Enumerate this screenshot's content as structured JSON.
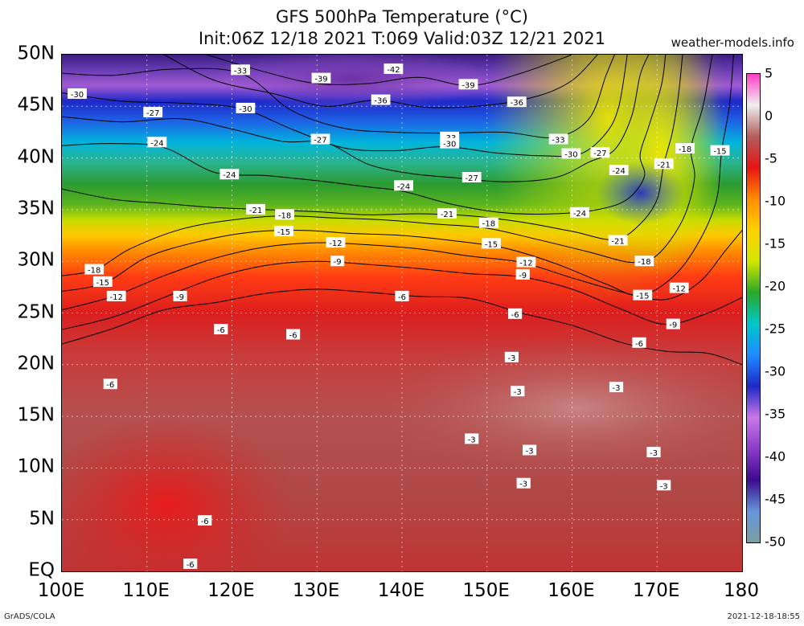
{
  "title": {
    "line1": "GFS 500hPa Temperature (°C)",
    "line2": "Init:06Z 12/18 2021 T:069 Valid:03Z 12/21 2021",
    "site": "weather-models.info"
  },
  "footer": {
    "left": "GrADS/COLA",
    "right": "2021-12-18-18:55"
  },
  "axes": {
    "lat_labels": [
      "50N",
      "45N",
      "40N",
      "35N",
      "30N",
      "25N",
      "20N",
      "15N",
      "10N",
      "5N",
      "EQ"
    ],
    "lat_values": [
      50,
      45,
      40,
      35,
      30,
      25,
      20,
      15,
      10,
      5,
      0
    ],
    "lon_labels": [
      "100E",
      "110E",
      "120E",
      "130E",
      "140E",
      "150E",
      "160E",
      "170E",
      "180"
    ],
    "lon_values": [
      100,
      110,
      120,
      130,
      140,
      150,
      160,
      170,
      180
    ],
    "lat_range": [
      0,
      50
    ],
    "lon_range": [
      100,
      180
    ],
    "grid": "dotted"
  },
  "colorbar": {
    "labels": [
      "5",
      "0",
      "-5",
      "-10",
      "-15",
      "-20",
      "-25",
      "-30",
      "-35",
      "-40",
      "-45",
      "-50"
    ],
    "values": [
      5,
      0,
      -5,
      -10,
      -15,
      -20,
      -25,
      -30,
      -35,
      -40,
      -45,
      -50
    ],
    "colors": [
      "#ff3cc8",
      "#f0f0f0",
      "#b25e5e",
      "#e61414",
      "#ff8c00",
      "#ffd200",
      "#d2e600",
      "#2aa82a",
      "#00c8c8",
      "#1e8cff",
      "#1e28c8",
      "#c878e6",
      "#8c3cc8",
      "#3c0a8c",
      "#6496dc",
      "#7a9fa0"
    ]
  },
  "contour_labels": [
    {
      "v": "-42",
      "lon": 139,
      "lat": 48.6
    },
    {
      "v": "-33",
      "lon": 121,
      "lat": 48.5
    },
    {
      "v": "-39",
      "lon": 130.5,
      "lat": 47.7
    },
    {
      "v": "-39",
      "lon": 147.8,
      "lat": 47.1
    },
    {
      "v": "-30",
      "lon": 101.8,
      "lat": 46.2
    },
    {
      "v": "-36",
      "lon": 137.5,
      "lat": 45.6
    },
    {
      "v": "-36",
      "lon": 153.5,
      "lat": 45.4
    },
    {
      "v": "-27",
      "lon": 110.7,
      "lat": 44.4
    },
    {
      "v": "-30",
      "lon": 121.6,
      "lat": 44.8
    },
    {
      "v": "-24",
      "lon": 111.2,
      "lat": 41.5
    },
    {
      "v": "-27",
      "lon": 130.4,
      "lat": 41.8
    },
    {
      "v": "-33",
      "lon": 145.6,
      "lat": 42.0
    },
    {
      "v": "-30",
      "lon": 145.6,
      "lat": 41.4
    },
    {
      "v": "-33",
      "lon": 158.4,
      "lat": 41.8
    },
    {
      "v": "-30",
      "lon": 159.9,
      "lat": 40.4
    },
    {
      "v": "-27",
      "lon": 163.3,
      "lat": 40.5
    },
    {
      "v": "-18",
      "lon": 173.3,
      "lat": 40.9
    },
    {
      "v": "-15",
      "lon": 177.4,
      "lat": 40.7
    },
    {
      "v": "-21",
      "lon": 170.8,
      "lat": 39.4
    },
    {
      "v": "-24",
      "lon": 165.5,
      "lat": 38.8
    },
    {
      "v": "-24",
      "lon": 119.7,
      "lat": 38.4
    },
    {
      "v": "-27",
      "lon": 148.2,
      "lat": 38.1
    },
    {
      "v": "-24",
      "lon": 140.2,
      "lat": 37.3
    },
    {
      "v": "-21",
      "lon": 122.8,
      "lat": 35.0
    },
    {
      "v": "-18",
      "lon": 126.2,
      "lat": 34.5
    },
    {
      "v": "-21",
      "lon": 145.3,
      "lat": 34.6
    },
    {
      "v": "-24",
      "lon": 160.9,
      "lat": 34.7
    },
    {
      "v": "-18",
      "lon": 150.2,
      "lat": 33.7
    },
    {
      "v": "-15",
      "lon": 126.1,
      "lat": 32.9
    },
    {
      "v": "-12",
      "lon": 132.2,
      "lat": 31.8
    },
    {
      "v": "-15",
      "lon": 150.5,
      "lat": 31.7
    },
    {
      "v": "-21",
      "lon": 165.4,
      "lat": 32.0
    },
    {
      "v": "-9",
      "lon": 132.4,
      "lat": 30.0
    },
    {
      "v": "-12",
      "lon": 154.6,
      "lat": 29.9
    },
    {
      "v": "-18",
      "lon": 168.5,
      "lat": 30.0
    },
    {
      "v": "-9",
      "lon": 154.2,
      "lat": 28.7
    },
    {
      "v": "-18",
      "lon": 103.8,
      "lat": 29.2
    },
    {
      "v": "-15",
      "lon": 104.8,
      "lat": 28.0
    },
    {
      "v": "-12",
      "lon": 172.6,
      "lat": 27.4
    },
    {
      "v": "-12",
      "lon": 106.4,
      "lat": 26.6
    },
    {
      "v": "-9",
      "lon": 113.9,
      "lat": 26.6
    },
    {
      "v": "-6",
      "lon": 140.0,
      "lat": 26.6
    },
    {
      "v": "-15",
      "lon": 168.3,
      "lat": 26.7
    },
    {
      "v": "-6",
      "lon": 153.3,
      "lat": 24.9
    },
    {
      "v": "-9",
      "lon": 171.9,
      "lat": 23.9
    },
    {
      "v": "-6",
      "lon": 118.7,
      "lat": 23.4
    },
    {
      "v": "-6",
      "lon": 127.2,
      "lat": 22.9
    },
    {
      "v": "-6",
      "lon": 167.9,
      "lat": 22.1
    },
    {
      "v": "-3",
      "lon": 152.9,
      "lat": 20.7
    },
    {
      "v": "-6",
      "lon": 105.7,
      "lat": 18.1
    },
    {
      "v": "-3",
      "lon": 165.2,
      "lat": 17.8
    },
    {
      "v": "-3",
      "lon": 153.6,
      "lat": 17.4
    },
    {
      "v": "-3",
      "lon": 148.2,
      "lat": 12.8
    },
    {
      "v": "-3",
      "lon": 155.0,
      "lat": 11.7
    },
    {
      "v": "-3",
      "lon": 169.6,
      "lat": 11.5
    },
    {
      "v": "-3",
      "lon": 154.3,
      "lat": 8.5
    },
    {
      "v": "-3",
      "lon": 170.8,
      "lat": 8.3
    },
    {
      "v": "-6",
      "lon": 116.8,
      "lat": 4.9
    },
    {
      "v": "-6",
      "lon": 115.1,
      "lat": 0.7
    }
  ],
  "contours": [
    {
      "v": -39,
      "pts": [
        [
          117,
          50
        ],
        [
          124,
          48.3
        ],
        [
          130,
          47.2
        ],
        [
          136,
          47.2
        ],
        [
          142,
          47.8
        ],
        [
          148,
          47.0
        ],
        [
          154,
          48.2
        ],
        [
          160,
          50
        ]
      ]
    },
    {
      "v": -36,
      "pts": [
        [
          112,
          50
        ],
        [
          118,
          47.5
        ],
        [
          125,
          46.2
        ],
        [
          131,
          45.0
        ],
        [
          137,
          45.6
        ],
        [
          143,
          44.9
        ],
        [
          150,
          45.1
        ],
        [
          156,
          46.0
        ],
        [
          160,
          47.5
        ],
        [
          163,
          50
        ]
      ]
    },
    {
      "v": -33,
      "pts": [
        [
          100,
          48.2
        ],
        [
          106,
          48.0
        ],
        [
          113,
          48.6
        ],
        [
          121,
          48.2
        ],
        [
          127,
          44.6
        ],
        [
          133,
          42.9
        ],
        [
          139,
          42.5
        ],
        [
          145,
          42.4
        ],
        [
          152,
          42.5
        ],
        [
          158,
          42.0
        ],
        [
          162,
          43.8
        ],
        [
          164,
          48
        ],
        [
          165,
          50
        ]
      ]
    },
    {
      "v": -30,
      "pts": [
        [
          100,
          46.3
        ],
        [
          107,
          45.5
        ],
        [
          114,
          45.3
        ],
        [
          121,
          44.8
        ],
        [
          127,
          42.8
        ],
        [
          133,
          41.0
        ],
        [
          139,
          40.7
        ],
        [
          145,
          41.1
        ],
        [
          151,
          40.5
        ],
        [
          157,
          40.2
        ],
        [
          161,
          40.4
        ],
        [
          164,
          42.4
        ],
        [
          165.5,
          45
        ],
        [
          166.5,
          50
        ]
      ]
    },
    {
      "v": -27,
      "pts": [
        [
          100,
          44.0
        ],
        [
          107,
          43.5
        ],
        [
          114,
          43.8
        ],
        [
          120,
          42.8
        ],
        [
          126,
          41.6
        ],
        [
          131,
          41.5
        ],
        [
          136,
          39.4
        ],
        [
          141,
          38.5
        ],
        [
          146,
          38.1
        ],
        [
          152,
          37.7
        ],
        [
          158,
          38.1
        ],
        [
          162,
          39.6
        ],
        [
          165,
          40.8
        ],
        [
          167,
          44
        ],
        [
          168,
          48
        ],
        [
          169,
          50
        ]
      ]
    },
    {
      "v": -24,
      "pts": [
        [
          100,
          41.2
        ],
        [
          106,
          41.4
        ],
        [
          112,
          41.0
        ],
        [
          118,
          38.6
        ],
        [
          124,
          38.3
        ],
        [
          130,
          37.8
        ],
        [
          136,
          37.2
        ],
        [
          140,
          36.8
        ],
        [
          146,
          35.5
        ],
        [
          152,
          34.7
        ],
        [
          158,
          34.6
        ],
        [
          163,
          35.0
        ],
        [
          166.5,
          36.0
        ],
        [
          168.5,
          38.2
        ],
        [
          168.0,
          40.3
        ],
        [
          169,
          43
        ],
        [
          170.5,
          47
        ],
        [
          171,
          50
        ]
      ]
    },
    {
      "v": -21,
      "pts": [
        [
          100,
          37.0
        ],
        [
          106,
          36.0
        ],
        [
          112,
          35.6
        ],
        [
          118,
          35.2
        ],
        [
          124,
          35.0
        ],
        [
          130,
          34.8
        ],
        [
          136,
          34.5
        ],
        [
          142,
          34.6
        ],
        [
          148,
          34.4
        ],
        [
          154,
          33.8
        ],
        [
          160,
          32.9
        ],
        [
          165,
          32.1
        ],
        [
          168,
          33.6
        ],
        [
          170,
          36
        ],
        [
          170.8,
          39.4
        ],
        [
          171.8,
          42.5
        ],
        [
          172.5,
          46
        ],
        [
          173,
          50
        ]
      ]
    },
    {
      "v": -18,
      "pts": [
        [
          100,
          28.6
        ],
        [
          104,
          29.2
        ],
        [
          108,
          31.2
        ],
        [
          114,
          33.1
        ],
        [
          120,
          34.0
        ],
        [
          126,
          34.4
        ],
        [
          132,
          34.2
        ],
        [
          138,
          34.0
        ],
        [
          144,
          33.6
        ],
        [
          150,
          33.2
        ],
        [
          156,
          32.1
        ],
        [
          162,
          30.9
        ],
        [
          167,
          29.9
        ],
        [
          170,
          30.6
        ],
        [
          173,
          34
        ],
        [
          174.4,
          38
        ],
        [
          174,
          41
        ],
        [
          175.4,
          45
        ],
        [
          176.5,
          50
        ]
      ]
    },
    {
      "v": -15,
      "pts": [
        [
          100,
          27.1
        ],
        [
          105,
          27.9
        ],
        [
          110,
          30.4
        ],
        [
          116,
          31.9
        ],
        [
          122,
          32.8
        ],
        [
          128,
          33.0
        ],
        [
          134,
          32.7
        ],
        [
          140,
          32.5
        ],
        [
          146,
          32.0
        ],
        [
          152,
          31.3
        ],
        [
          158,
          29.8
        ],
        [
          164,
          27.8
        ],
        [
          168,
          26.7
        ],
        [
          172,
          28.6
        ],
        [
          175,
          32
        ],
        [
          177,
          36
        ],
        [
          177.6,
          40.7
        ],
        [
          178.5,
          45
        ],
        [
          179,
          50
        ]
      ]
    },
    {
      "v": -12,
      "pts": [
        [
          100,
          25.3
        ],
        [
          106,
          26.6
        ],
        [
          112,
          28.6
        ],
        [
          118,
          30.3
        ],
        [
          124,
          31.4
        ],
        [
          130,
          31.8
        ],
        [
          136,
          31.6
        ],
        [
          142,
          31.2
        ],
        [
          148,
          30.5
        ],
        [
          154,
          29.9
        ],
        [
          160,
          28.4
        ],
        [
          166,
          27.0
        ],
        [
          171,
          26.3
        ],
        [
          175,
          28
        ],
        [
          178,
          31
        ],
        [
          180,
          33
        ]
      ]
    },
    {
      "v": -9,
      "pts": [
        [
          100,
          23.4
        ],
        [
          106,
          24.6
        ],
        [
          112,
          26.5
        ],
        [
          118,
          28.4
        ],
        [
          124,
          29.6
        ],
        [
          130,
          30.0
        ],
        [
          136,
          29.7
        ],
        [
          142,
          29.3
        ],
        [
          148,
          28.8
        ],
        [
          154,
          28.5
        ],
        [
          160,
          27.3
        ],
        [
          166,
          25.3
        ],
        [
          171,
          23.9
        ],
        [
          176,
          25
        ],
        [
          180,
          26.5
        ]
      ]
    },
    {
      "v": -6,
      "pts": [
        [
          100,
          22.0
        ],
        [
          106,
          23.5
        ],
        [
          112,
          25.3
        ],
        [
          118,
          26.0
        ],
        [
          124,
          26.9
        ],
        [
          130,
          27.3
        ],
        [
          136,
          27.0
        ],
        [
          142,
          26.6
        ],
        [
          148,
          26.4
        ],
        [
          154,
          25.0
        ],
        [
          160,
          23.8
        ],
        [
          166,
          22.1
        ],
        [
          171,
          21.3
        ],
        [
          176,
          21.1
        ],
        [
          180,
          20.0
        ]
      ]
    }
  ]
}
